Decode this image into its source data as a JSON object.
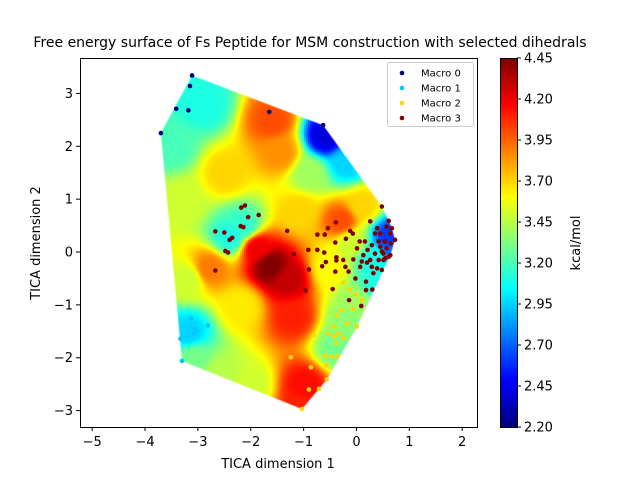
{
  "chart_data": {
    "type": "scatter",
    "title": "Free energy surface of Fs Peptide for MSM construction with selected dihedrals",
    "xlabel": "TICA dimension 1",
    "ylabel": "TICA dimension 2",
    "xlim": [
      -5.23,
      2.28
    ],
    "ylim": [
      -3.31,
      3.67
    ],
    "xticks": [
      -5,
      -4,
      -3,
      -2,
      -1,
      0,
      1,
      2
    ],
    "yticks": [
      -3,
      -2,
      -1,
      0,
      1,
      2,
      3
    ],
    "grid": false,
    "legend_position": "top-right",
    "colorbar": {
      "label": "kcal/mol",
      "colormap": "jet",
      "range": [
        2.2,
        4.45
      ],
      "ticks": [
        "2.20",
        "2.45",
        "2.70",
        "2.95",
        "3.20",
        "3.45",
        "3.70",
        "3.95",
        "4.20",
        "4.45"
      ]
    },
    "surface_samples": [
      [
        -1.65,
        -0.25,
        4.45
      ],
      [
        -1.3,
        -0.5,
        4.3
      ],
      [
        -1.9,
        0.1,
        4.2
      ],
      [
        -1.6,
        2.5,
        4.0
      ],
      [
        -1.45,
        1.9,
        3.85
      ],
      [
        -0.6,
        2.2,
        2.4
      ],
      [
        -0.2,
        1.7,
        2.95
      ],
      [
        -3.5,
        2.0,
        3.2
      ],
      [
        -2.9,
        2.8,
        3.1
      ],
      [
        -3.3,
        1.0,
        3.5
      ],
      [
        -3.2,
        -0.5,
        3.5
      ],
      [
        -3.2,
        -1.5,
        2.95
      ],
      [
        -3.1,
        -2.0,
        3.3
      ],
      [
        -2.5,
        1.5,
        3.7
      ],
      [
        -2.4,
        0.3,
        3.1
      ],
      [
        -2.15,
        0.5,
        3.15
      ],
      [
        -1.1,
        0.8,
        3.7
      ],
      [
        -0.9,
        1.5,
        3.4
      ],
      [
        -0.3,
        0.6,
        4.0
      ],
      [
        0.1,
        0.9,
        3.7
      ],
      [
        0.6,
        0.3,
        2.6
      ],
      [
        0.7,
        0.1,
        2.7
      ],
      [
        0.3,
        -0.1,
        3.1
      ],
      [
        -0.5,
        -0.3,
        3.6
      ],
      [
        -1.2,
        -1.2,
        4.1
      ],
      [
        -1.0,
        -2.5,
        4.15
      ],
      [
        -1.05,
        -2.9,
        4.1
      ],
      [
        -0.4,
        -1.8,
        3.3
      ],
      [
        -0.2,
        -1.3,
        3.35
      ],
      [
        -2.2,
        -1.0,
        3.65
      ],
      [
        -2.0,
        -2.5,
        3.5
      ],
      [
        -2.8,
        -0.3,
        3.9
      ],
      [
        0.0,
        -0.9,
        3.4
      ],
      [
        -2.6,
        -2.3,
        3.45
      ],
      [
        0.35,
        -0.6,
        3.1
      ],
      [
        -0.1,
        0.2,
        3.5
      ]
    ],
    "series": [
      {
        "name": "Macro 0",
        "color": "#000080",
        "points": [
          [
            -3.11,
            3.34
          ],
          [
            -3.15,
            3.14
          ],
          [
            -3.41,
            2.71
          ],
          [
            -3.18,
            2.68
          ],
          [
            -3.7,
            2.25
          ],
          [
            -1.65,
            2.65
          ],
          [
            -0.63,
            2.4
          ]
        ]
      },
      {
        "name": "Macro 1",
        "color": "#00c8ff",
        "points": [
          [
            -3.13,
            -1.25
          ],
          [
            -3.06,
            -1.45
          ],
          [
            -3.08,
            -1.55
          ],
          [
            -3.01,
            -1.5
          ],
          [
            -2.81,
            -1.39
          ],
          [
            -3.33,
            -1.64
          ],
          [
            -3.3,
            -2.06
          ]
        ]
      },
      {
        "name": "Macro 2",
        "color": "#ffd700",
        "points": [
          [
            -1.1,
            0.81
          ],
          [
            -1.03,
            -2.97
          ],
          [
            -0.9,
            -2.6
          ],
          [
            -0.71,
            -2.59
          ],
          [
            -0.56,
            -2.41
          ],
          [
            -0.86,
            -2.18
          ],
          [
            -1.24,
            -1.99
          ],
          [
            -0.81,
            -1.57
          ],
          [
            -0.59,
            -1.96
          ],
          [
            -0.52,
            -1.54
          ],
          [
            -0.42,
            -1.6
          ],
          [
            -0.34,
            -1.54
          ],
          [
            -0.38,
            -1.72
          ],
          [
            -0.25,
            -1.63
          ],
          [
            -0.36,
            -1.97
          ],
          [
            -0.47,
            -1.98
          ],
          [
            -0.37,
            -1.19
          ],
          [
            -0.28,
            -1.1
          ],
          [
            -0.18,
            -1.35
          ],
          [
            0.01,
            -1.41
          ],
          [
            -0.07,
            -1.07
          ],
          [
            -0.13,
            -0.71
          ],
          [
            -0.25,
            -0.58
          ],
          [
            0.1,
            -0.91
          ],
          [
            -0.02,
            -0.81
          ],
          [
            -0.43,
            -1.41
          ],
          [
            -0.57,
            -2.14
          ]
        ]
      },
      {
        "name": "Macro 3",
        "color": "#800000",
        "points": [
          [
            -2.67,
            0.39
          ],
          [
            -2.67,
            -0.35
          ],
          [
            -2.5,
            0.37
          ],
          [
            -2.4,
            0.23
          ],
          [
            -2.35,
            0.27
          ],
          [
            -2.48,
            0.02
          ],
          [
            -2.43,
            -0.01
          ],
          [
            -2.18,
            0.84
          ],
          [
            -2.11,
            0.88
          ],
          [
            -2.19,
            0.49
          ],
          [
            -2.14,
            0.47
          ],
          [
            -2.05,
            0.66
          ],
          [
            -1.85,
            0.7
          ],
          [
            -1.31,
            0.4
          ],
          [
            -1.18,
            -0.04
          ],
          [
            -0.9,
            -0.33
          ],
          [
            -0.96,
            -0.73
          ],
          [
            -0.91,
            0.04
          ],
          [
            -0.74,
            0.04
          ],
          [
            -0.74,
            0.33
          ],
          [
            -0.6,
            0.33
          ],
          [
            -0.54,
            0.45
          ],
          [
            -0.39,
            0.56
          ],
          [
            -0.4,
            0.18
          ],
          [
            -0.61,
            -0.01
          ],
          [
            -0.58,
            -0.19
          ],
          [
            -0.65,
            -0.27
          ],
          [
            -0.4,
            -0.37
          ],
          [
            -0.38,
            -0.1
          ],
          [
            -0.38,
            -0.16
          ],
          [
            -0.45,
            -0.7
          ],
          [
            -0.14,
            -0.91
          ],
          [
            0.09,
            -1.02
          ],
          [
            -0.2,
            0.25
          ],
          [
            -0.12,
            0.4
          ],
          [
            -0.07,
            0.35
          ],
          [
            0.26,
            0.58
          ],
          [
            0.48,
            0.86
          ],
          [
            -0.25,
            -0.15
          ],
          [
            -0.21,
            -0.28
          ],
          [
            -0.15,
            -0.37
          ],
          [
            -0.06,
            -0.14
          ],
          [
            -0.02,
            -0.5
          ],
          [
            0.07,
            -0.28
          ],
          [
            0.01,
            0.07
          ],
          [
            0.06,
            0.2
          ],
          [
            0.16,
            0.2
          ],
          [
            0.21,
            0.04
          ],
          [
            0.2,
            -0.2
          ],
          [
            0.18,
            -0.56
          ],
          [
            0.18,
            -0.72
          ],
          [
            0.3,
            -0.71
          ],
          [
            0.35,
            0.35
          ],
          [
            0.39,
            0.45
          ],
          [
            0.32,
            -0.4
          ],
          [
            0.35,
            -0.03
          ],
          [
            0.42,
            -0.15
          ],
          [
            0.45,
            0.1
          ],
          [
            0.48,
            -0.34
          ],
          [
            0.51,
            -0.03
          ],
          [
            0.54,
            0.2
          ],
          [
            0.57,
            0.48
          ],
          [
            0.61,
            0.59
          ],
          [
            0.64,
            0.35
          ],
          [
            0.67,
            0.45
          ],
          [
            0.73,
            0.23
          ],
          [
            0.65,
            0.16
          ],
          [
            0.57,
            0.07
          ],
          [
            0.61,
            -0.09
          ],
          [
            0.64,
            -0.06
          ],
          [
            0.51,
            -0.15
          ],
          [
            0.42,
            0.2
          ],
          [
            0.29,
            0.13
          ],
          [
            0.26,
            -0.15
          ],
          [
            0.13,
            -0.06
          ],
          [
            0.1,
            -0.18
          ],
          [
            0.29,
            -0.28
          ],
          [
            0.39,
            -0.31
          ],
          [
            0.45,
            0.35
          ],
          [
            0.48,
            0.01
          ],
          [
            0.54,
            -0.12
          ]
        ]
      }
    ]
  }
}
